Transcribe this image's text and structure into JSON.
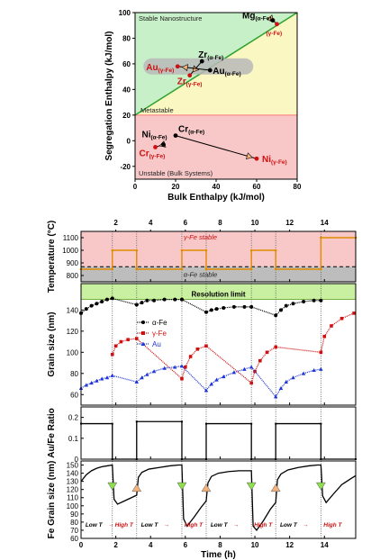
{
  "chart_data": [
    {
      "type": "scatter",
      "title": "",
      "xlabel": "Bulk Enthalpy  (kJ/mol)",
      "ylabel": "Segregation Enthalpy  (kJ/mol)",
      "xlim": [
        0,
        80
      ],
      "ylim": [
        -30,
        100
      ],
      "xticks": [
        0,
        20,
        40,
        60,
        80
      ],
      "yticks": [
        -20,
        0,
        20,
        40,
        60,
        80,
        100
      ],
      "regions": [
        {
          "label": "Stable Nanostructure",
          "color": "#c8f0c8"
        },
        {
          "label": "Metastable",
          "color": "#fbf7c3"
        },
        {
          "label": "Unstable (Bulk Systems)",
          "color": "#f8c8c8"
        }
      ],
      "boundary_y": 20,
      "diagonal": [
        [
          0,
          20
        ],
        [
          80,
          100
        ]
      ],
      "points": [
        {
          "element": "Mg",
          "phase": "(α-Fe)",
          "x": 68,
          "y": 94,
          "color": "#000000"
        },
        {
          "element": "",
          "phase": "(γ-Fe)",
          "x": 70,
          "y": 91,
          "color": "#d01010"
        },
        {
          "element": "Zr",
          "phase": "(α-Fe)",
          "x": 33,
          "y": 62,
          "color": "#000000"
        },
        {
          "element": "Zr",
          "phase": "(γ-Fe)",
          "x": 27,
          "y": 51,
          "color": "#d01010"
        },
        {
          "element": "Au",
          "phase": "(α-Fe)",
          "x": 37,
          "y": 55,
          "color": "#000000"
        },
        {
          "element": "Au",
          "phase": "(γ-Fe)",
          "x": 21,
          "y": 58,
          "color": "#d01010"
        },
        {
          "element": "Ni",
          "phase": "(α-Fe)",
          "x": 14,
          "y": -3,
          "color": "#000000"
        },
        {
          "element": "Cr",
          "phase": "(α-Fe)",
          "x": 20,
          "y": 4,
          "color": "#000000"
        },
        {
          "element": "Cr",
          "phase": "(γ-Fe)",
          "x": 10,
          "y": -5,
          "color": "#d01010"
        },
        {
          "element": "Ni",
          "phase": "(γ-Fe)",
          "x": 60,
          "y": -14,
          "color": "#d01010"
        }
      ]
    },
    {
      "type": "line",
      "title": "",
      "xlabel": "Time (h)",
      "top_xticks": [
        2,
        4,
        6,
        8,
        10,
        12,
        14
      ],
      "bottom_xticks": [
        0,
        2,
        4,
        6,
        8,
        10,
        12,
        14
      ],
      "xlim": [
        0,
        15.8
      ],
      "cycle_sequence": [
        "Low T",
        "High T",
        "Low T",
        "High T",
        "Low T",
        "High T",
        "Low T",
        "High T"
      ],
      "transitions_h": [
        1.8,
        3.2,
        5.8,
        7.2,
        9.8,
        11.2,
        13.8
      ],
      "panels": [
        {
          "ylabel": "Temperature (°C)",
          "ylim": [
            750,
            1150
          ],
          "yticks": [
            800,
            900,
            1000,
            1100
          ],
          "bands": [
            {
              "label": "γ-Fe stable",
              "from": 870,
              "to": 1150,
              "color": "#f8c8c8"
            },
            {
              "label": "α-Fe stable",
              "from": 750,
              "to": 870,
              "color": "#bdbdbd"
            }
          ],
          "dashed_line_y": 870,
          "series": [
            {
              "name": "",
              "color": "#e08a00",
              "x": [
                0,
                1.8,
                1.8,
                3.2,
                3.2,
                5.8,
                5.8,
                7.2,
                7.2,
                9.8,
                9.8,
                11.2,
                11.2,
                13.8,
                13.8,
                15.8
              ],
              "y": [
                850,
                850,
                1000,
                1000,
                850,
                850,
                1000,
                1000,
                850,
                850,
                1000,
                1000,
                850,
                850,
                1100,
                1100
              ]
            }
          ]
        },
        {
          "ylabel": "Grain size (nm)",
          "ylim": [
            50,
            165
          ],
          "yticks": [
            60,
            80,
            100,
            120,
            140
          ],
          "band": {
            "label": "Resolution limit",
            "from": 150,
            "to": 165,
            "color": "#c8f0a0"
          },
          "series": [
            {
              "name": "α-Fe",
              "color": "#000000",
              "x": [
                0,
                0.3,
                0.6,
                0.9,
                1.2,
                1.5,
                1.8,
                3.2,
                3.5,
                3.8,
                4.2,
                4.8,
                5.4,
                5.8,
                7.2,
                7.5,
                7.8,
                8.2,
                8.8,
                9.4,
                9.8,
                11.2,
                11.5,
                11.8,
                12.2,
                12.8,
                13.4,
                13.8
              ],
              "y": [
                137,
                141,
                144,
                146,
                148,
                150,
                151,
                145,
                147,
                149,
                149,
                150,
                150,
                150,
                138,
                140,
                141,
                142,
                143,
                143,
                143,
                135,
                140,
                144,
                146,
                148,
                149,
                149
              ]
            },
            {
              "name": "γ-Fe",
              "color": "#d01010",
              "x": [
                1.8,
                2.0,
                2.3,
                2.7,
                3.2,
                5.8,
                6.0,
                6.3,
                6.7,
                7.2,
                9.8,
                10.0,
                10.3,
                10.7,
                11.2,
                13.8,
                14.0,
                14.4,
                15.0,
                15.7
              ],
              "y": [
                98,
                106,
                110,
                112,
                113,
                75,
                86,
                96,
                103,
                106,
                71,
                82,
                92,
                100,
                105,
                100,
                115,
                125,
                132,
                137
              ]
            },
            {
              "name": "Au",
              "color": "#1f35d8",
              "x": [
                0,
                0.3,
                0.6,
                0.9,
                1.2,
                1.5,
                1.8,
                3.2,
                3.5,
                3.8,
                4.2,
                4.8,
                5.4,
                5.8,
                7.2,
                7.5,
                7.8,
                8.2,
                8.8,
                9.4,
                9.8,
                11.2,
                11.5,
                11.8,
                12.2,
                12.8,
                13.4,
                13.8
              ],
              "y": [
                66,
                69,
                71,
                73,
                75,
                76,
                78,
                72,
                76,
                79,
                82,
                85,
                86,
                87,
                64,
                70,
                74,
                77,
                81,
                84,
                86,
                58,
                66,
                72,
                76,
                80,
                83,
                84
              ]
            }
          ]
        },
        {
          "ylabel": "Au/Fe Ratio",
          "ylim": [
            0,
            0.25
          ],
          "yticks": [
            0.0,
            0.1,
            0.2
          ],
          "series": [
            {
              "name": "",
              "color": "#000000",
              "x": [
                0,
                1.8,
                1.8,
                3.2,
                3.2,
                5.8,
                5.8,
                7.2,
                7.2,
                9.8,
                9.8,
                11.2,
                11.2,
                13.8,
                13.8,
                15.8
              ],
              "y": [
                0.17,
                0.17,
                0,
                0,
                0.18,
                0.18,
                0,
                0,
                0.17,
                0.17,
                0,
                0,
                0.17,
                0.17,
                0,
                0
              ]
            }
          ]
        },
        {
          "ylabel": "Fe Grain size (nm)",
          "ylim": [
            60,
            155
          ],
          "yticks": [
            60,
            70,
            80,
            90,
            100,
            110,
            120,
            130,
            140,
            150
          ],
          "series": [
            {
              "name": "",
              "color": "#000000",
              "x": [
                0,
                0.3,
                0.6,
                0.9,
                1.2,
                1.5,
                1.8,
                1.9,
                2.1,
                2.5,
                2.9,
                3.2,
                3.3,
                3.5,
                3.9,
                4.5,
                5.1,
                5.6,
                5.8,
                5.9,
                6.1,
                6.5,
                6.9,
                7.2,
                7.3,
                7.5,
                7.9,
                8.5,
                9.1,
                9.6,
                9.8,
                9.9,
                10.1,
                10.5,
                10.9,
                11.2,
                11.3,
                11.5,
                11.9,
                12.5,
                13.1,
                13.6,
                13.8,
                13.9,
                14.1,
                14.5,
                15.0,
                15.5,
                15.8
              ],
              "y": [
                130,
                138,
                143,
                146,
                148,
                149,
                150,
                108,
                102,
                106,
                110,
                113,
                135,
                141,
                145,
                147,
                149,
                150,
                150,
                84,
                75,
                86,
                98,
                106,
                128,
                136,
                140,
                142,
                143,
                143,
                143,
                75,
                70,
                82,
                96,
                104,
                132,
                139,
                144,
                147,
                149,
                150,
                150,
                112,
                104,
                114,
                126,
                133,
                137
              ]
            }
          ],
          "markers": [
            {
              "x": 1.8,
              "y": 124,
              "shape": "triangle-down",
              "color": "#8ee04a"
            },
            {
              "x": 3.2,
              "y": 122,
              "shape": "triangle-up",
              "color": "#f4b27a"
            },
            {
              "x": 5.8,
              "y": 124,
              "shape": "triangle-down",
              "color": "#8ee04a"
            },
            {
              "x": 7.2,
              "y": 122,
              "shape": "triangle-up",
              "color": "#f4b27a"
            },
            {
              "x": 9.8,
              "y": 124,
              "shape": "triangle-down",
              "color": "#8ee04a"
            },
            {
              "x": 11.2,
              "y": 122,
              "shape": "triangle-up",
              "color": "#f4b27a"
            },
            {
              "x": 13.8,
              "y": 124,
              "shape": "triangle-down",
              "color": "#8ee04a"
            }
          ]
        }
      ]
    }
  ]
}
